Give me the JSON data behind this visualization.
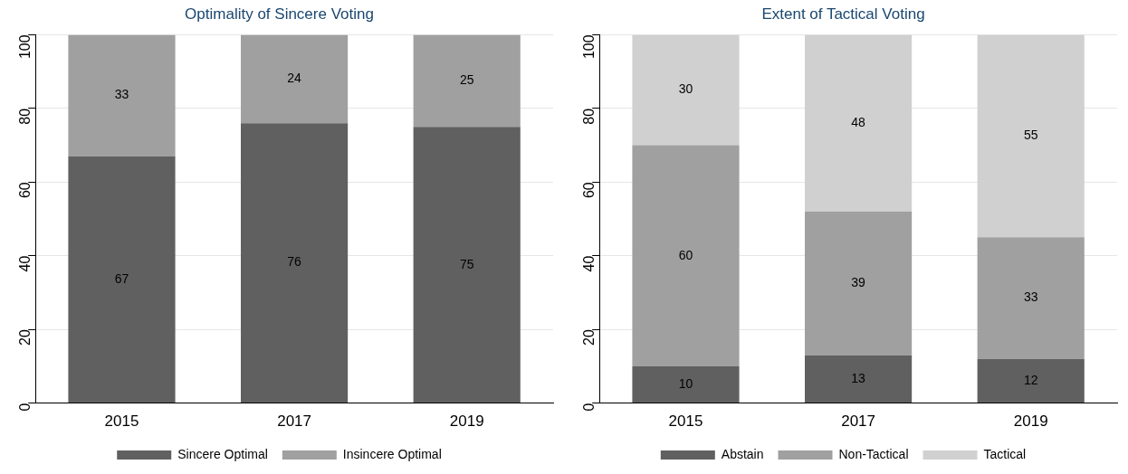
{
  "chart_data": [
    {
      "type": "bar",
      "title": "Optimality of Sincere Voting",
      "categories": [
        "2015",
        "2017",
        "2019"
      ],
      "stacked": true,
      "ylim": [
        0,
        100
      ],
      "yticks": [
        0,
        20,
        40,
        60,
        80,
        100
      ],
      "grid": "y",
      "legend": "bottom",
      "data_labels": true,
      "series": [
        {
          "name": "Sincere Optimal",
          "color": "#606060",
          "values": [
            67,
            76,
            75
          ]
        },
        {
          "name": "Insincere Optimal",
          "color": "#a0a0a0",
          "values": [
            33,
            24,
            25
          ]
        }
      ]
    },
    {
      "type": "bar",
      "title": "Extent of Tactical Voting",
      "categories": [
        "2015",
        "2017",
        "2019"
      ],
      "stacked": true,
      "ylim": [
        0,
        100
      ],
      "yticks": [
        0,
        20,
        40,
        60,
        80,
        100
      ],
      "grid": "y",
      "legend": "bottom",
      "data_labels": true,
      "series": [
        {
          "name": "Abstain",
          "color": "#606060",
          "values": [
            10,
            13,
            12
          ]
        },
        {
          "name": "Non-Tactical",
          "color": "#a0a0a0",
          "values": [
            60,
            39,
            33
          ]
        },
        {
          "name": "Tactical",
          "color": "#d0d0d0",
          "values": [
            30,
            48,
            55
          ]
        }
      ]
    }
  ]
}
